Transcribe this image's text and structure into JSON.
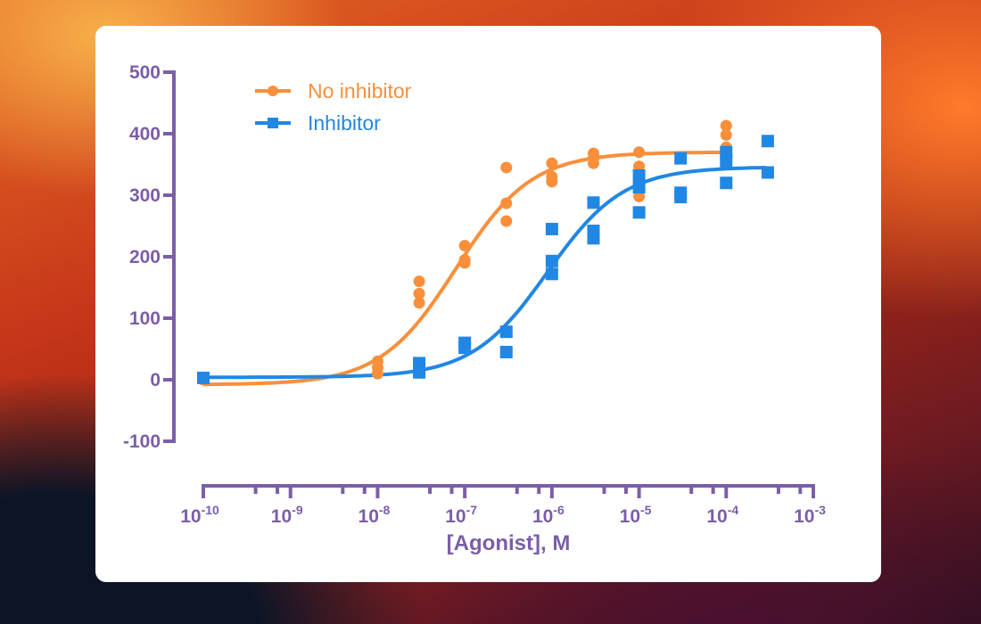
{
  "chart_data": {
    "type": "scatter",
    "xlabel": "[Agonist], M",
    "ylabel": "",
    "x_scale": "log",
    "xlim": [
      1e-10,
      0.001
    ],
    "ylim": [
      -100,
      500
    ],
    "x_ticks": [
      {
        "base": "10",
        "exp": "-10"
      },
      {
        "base": "10",
        "exp": "-9"
      },
      {
        "base": "10",
        "exp": "-8"
      },
      {
        "base": "10",
        "exp": "-7"
      },
      {
        "base": "10",
        "exp": "-6"
      },
      {
        "base": "10",
        "exp": "-5"
      },
      {
        "base": "10",
        "exp": "-4"
      },
      {
        "base": "10",
        "exp": "-3"
      }
    ],
    "y_ticks": [
      "-100",
      "0",
      "100",
      "200",
      "300",
      "400",
      "500"
    ],
    "grid": false,
    "legend_position": "top-left",
    "series": [
      {
        "name": "No inhibitor",
        "color": "#F98F3A",
        "marker": "circle",
        "fit": "sigmoidal dose-response curve",
        "points": [
          [
            1e-10,
            0
          ],
          [
            1e-08,
            30
          ],
          [
            1e-08,
            20
          ],
          [
            1e-08,
            10
          ],
          [
            3e-08,
            160
          ],
          [
            3e-08,
            140
          ],
          [
            3e-08,
            125
          ],
          [
            1e-07,
            218
          ],
          [
            1e-07,
            195
          ],
          [
            1e-07,
            190
          ],
          [
            3e-07,
            345
          ],
          [
            3e-07,
            287
          ],
          [
            3e-07,
            258
          ],
          [
            1e-06,
            352
          ],
          [
            1e-06,
            330
          ],
          [
            1e-06,
            322
          ],
          [
            3e-06,
            368
          ],
          [
            3e-06,
            360
          ],
          [
            3e-06,
            352
          ],
          [
            1e-05,
            370
          ],
          [
            1e-05,
            347
          ],
          [
            1e-05,
            298
          ],
          [
            0.0001,
            413
          ],
          [
            0.0001,
            398
          ],
          [
            0.0001,
            378
          ]
        ]
      },
      {
        "name": "Inhibitor",
        "color": "#2187E4",
        "marker": "square",
        "fit": "sigmoidal dose-response curve",
        "points": [
          [
            1e-10,
            3
          ],
          [
            3e-08,
            27
          ],
          [
            3e-08,
            12
          ],
          [
            1e-07,
            60
          ],
          [
            1e-07,
            52
          ],
          [
            3e-07,
            78
          ],
          [
            3e-07,
            45
          ],
          [
            1e-06,
            245
          ],
          [
            1e-06,
            193
          ],
          [
            1e-06,
            172
          ],
          [
            3e-06,
            288
          ],
          [
            3e-06,
            242
          ],
          [
            3e-06,
            230
          ],
          [
            1e-05,
            332
          ],
          [
            1e-05,
            313
          ],
          [
            1e-05,
            272
          ],
          [
            3e-05,
            360
          ],
          [
            3e-05,
            304
          ],
          [
            3e-05,
            297
          ],
          [
            0.0001,
            370
          ],
          [
            0.0001,
            355
          ],
          [
            0.0001,
            320
          ],
          [
            0.0003,
            388
          ],
          [
            0.0003,
            337
          ]
        ]
      }
    ]
  },
  "axis_color": "#7B5EA7"
}
